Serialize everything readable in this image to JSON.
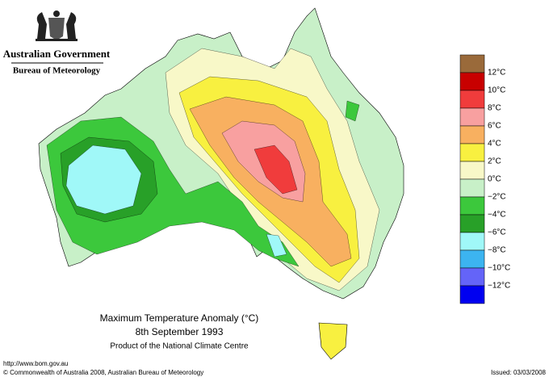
{
  "header": {
    "organisation": "Australian Government",
    "agency": "Bureau of Meteorology"
  },
  "legend": {
    "colors": [
      "#9a6a3a",
      "#c80000",
      "#f03c3c",
      "#f8a0a0",
      "#f8b060",
      "#f8f040",
      "#f8f8c8",
      "#c8f0c8",
      "#3cc83c",
      "#28a028",
      "#a0f8f8",
      "#3cb4f0",
      "#6464f8",
      "#0000f0"
    ],
    "labels": [
      "12°C",
      "10°C",
      "8°C",
      "6°C",
      "4°C",
      "2°C",
      "0°C",
      "−2°C",
      "−4°C",
      "−6°C",
      "−8°C",
      "−10°C",
      "−12°C"
    ]
  },
  "title": {
    "line1": "Maximum Temperature Anomaly (°C)",
    "line2": "8th September 1993",
    "line3": "Product of the National Climate Centre"
  },
  "footer": {
    "url": "http://www.bom.gov.au",
    "copyright": "© Commonwealth of Australia 2008, Australian Bureau of Meteorology",
    "issued": "Issued: 03/03/2008"
  }
}
